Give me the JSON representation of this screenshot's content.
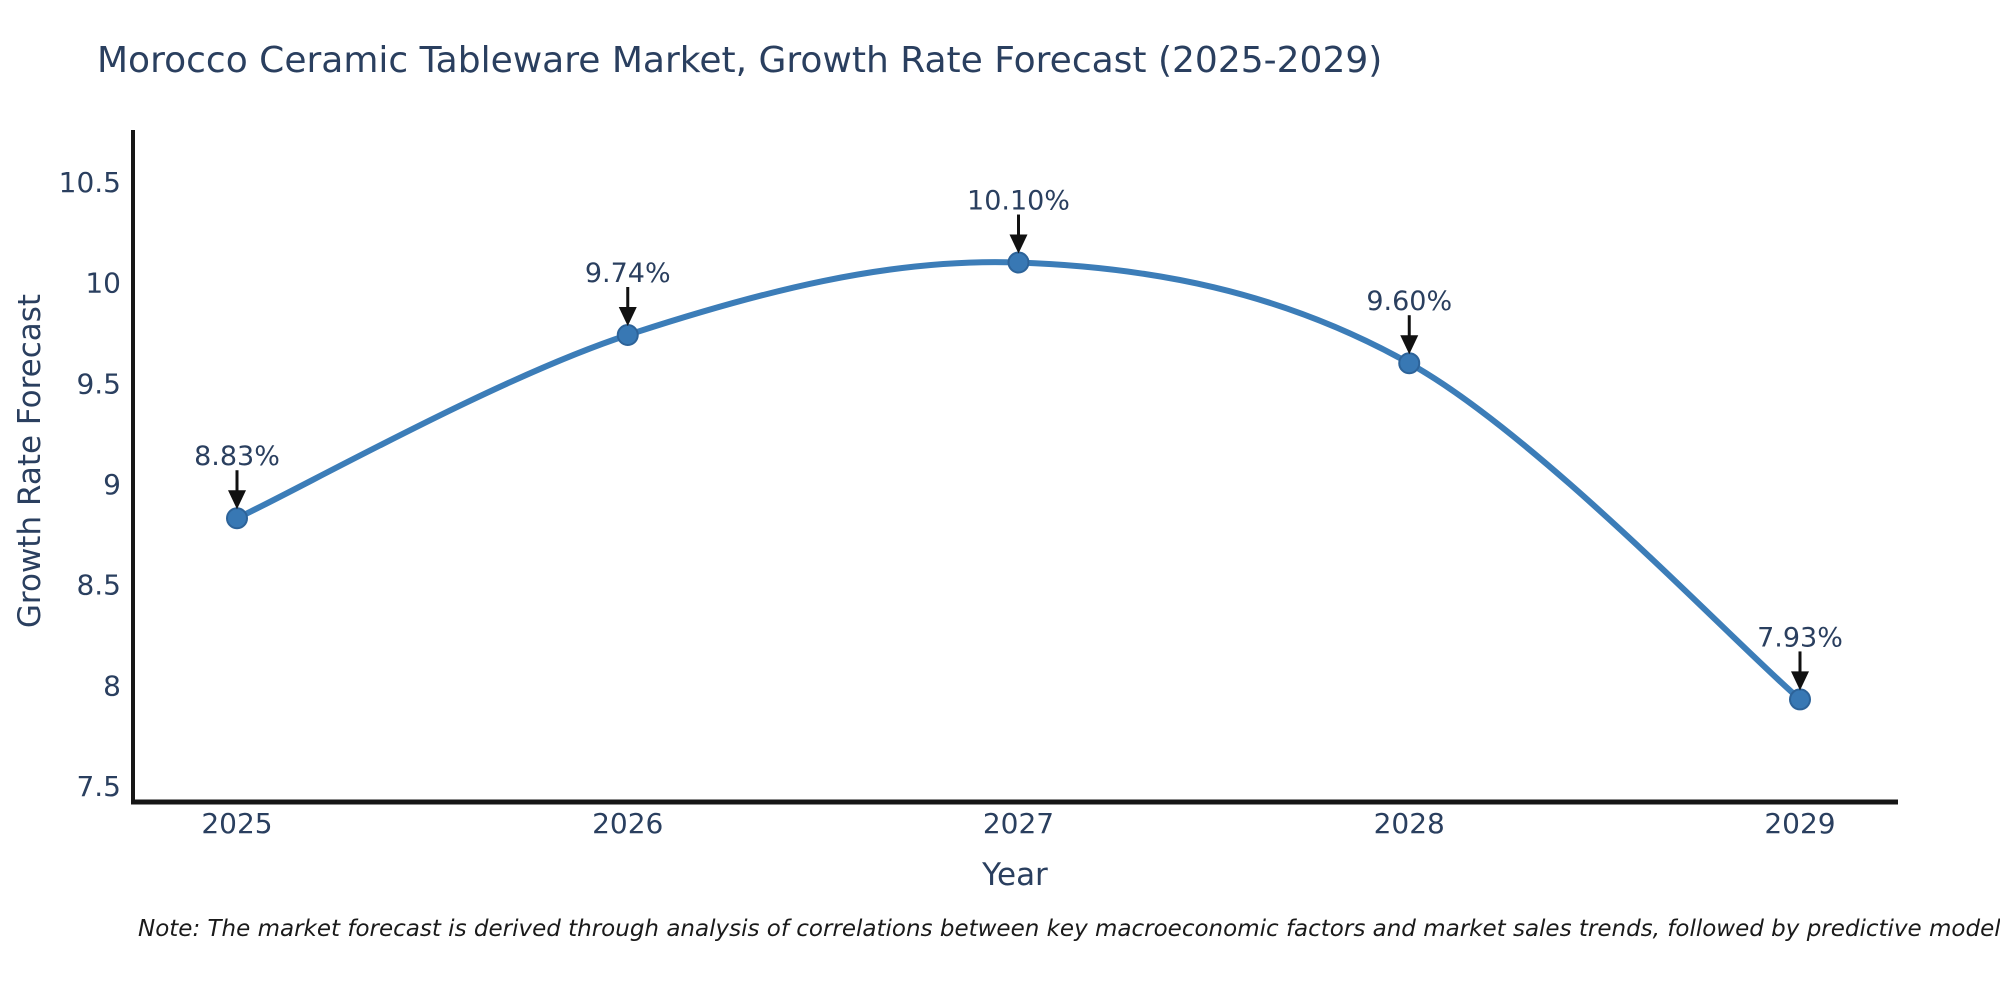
{
  "chart_data": {
    "type": "line",
    "title": "Morocco Ceramic Tableware Market, Growth Rate Forecast (2025-2029)",
    "xlabel": "Year",
    "ylabel": "Growth Rate Forecast",
    "categories": [
      "2025",
      "2026",
      "2027",
      "2028",
      "2029"
    ],
    "values": [
      8.83,
      9.74,
      10.1,
      9.6,
      7.93
    ],
    "point_labels": [
      "8.83%",
      "9.74%",
      "10.10%",
      "9.60%",
      "7.93%"
    ],
    "ylim": [
      7.5,
      10.5
    ],
    "yticks": [
      10.5,
      10,
      9.5,
      9,
      8.5,
      8,
      7.5
    ],
    "ytick_labels": [
      "10.5",
      "10",
      "9.5",
      "9",
      "8.5",
      "8",
      "7.5"
    ],
    "grid": false,
    "legend": "none",
    "line_shape": "spline",
    "colors": {
      "line": "#3c7db8",
      "marker_fill": "#3878b4",
      "marker_stroke": "#2d6399",
      "axis": "#161616",
      "text": "#2a3f5f",
      "arrow": "#111111"
    },
    "note": "Note: The market forecast is derived through analysis of correlations between key macroeconomic factors and market sales trends, followed by predictive modeling to project future sal"
  }
}
